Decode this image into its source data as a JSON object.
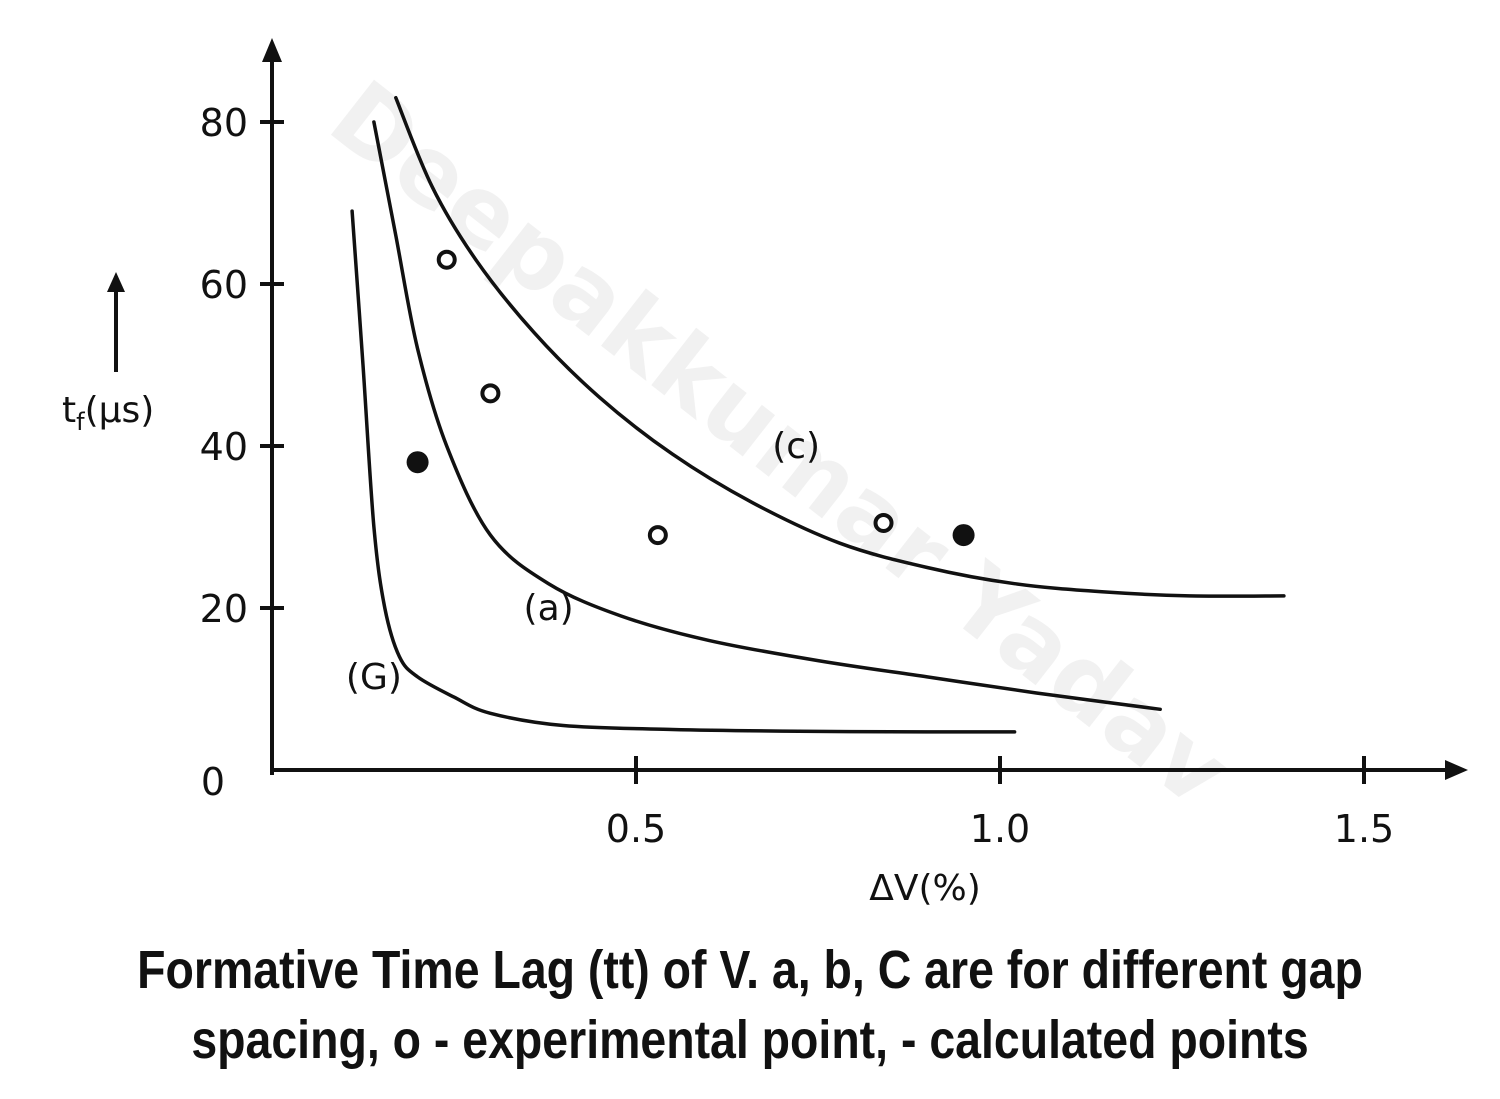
{
  "caption": {
    "line1": "Formative Time Lag (tt) of V. a, b, C are for different gap",
    "line2": "spacing, o - experimental point, - calculated points"
  },
  "watermark": "Deepakkumar Yadav",
  "chart_data": {
    "type": "line",
    "xlabel": "ΔV(%)",
    "ylabel": "t_f(μs)",
    "ylabel_main": "t",
    "ylabel_sub": "f",
    "ylabel_rest": "(μs)",
    "origin_label": "0",
    "xlim": [
      0,
      1.6
    ],
    "ylim": [
      0,
      85
    ],
    "xticks": [
      {
        "value": 0.5,
        "label": "0.5"
      },
      {
        "value": 1.0,
        "label": "1.0"
      },
      {
        "value": 1.5,
        "label": "1.5"
      }
    ],
    "yticks": [
      {
        "value": 20,
        "label": "20"
      },
      {
        "value": 40,
        "label": "40"
      },
      {
        "value": 60,
        "label": "60"
      },
      {
        "value": 80,
        "label": "80"
      }
    ],
    "grid": false,
    "series": [
      {
        "name": "(G)",
        "label_at": {
          "x": 0.14,
          "y": 10
        },
        "points": [
          [
            0.11,
            69
          ],
          [
            0.125,
            50
          ],
          [
            0.14,
            30
          ],
          [
            0.155,
            20
          ],
          [
            0.175,
            14
          ],
          [
            0.2,
            11.5
          ],
          [
            0.25,
            9
          ],
          [
            0.3,
            7
          ],
          [
            0.4,
            5.5
          ],
          [
            0.55,
            5
          ],
          [
            0.7,
            4.8
          ],
          [
            0.9,
            4.7
          ],
          [
            1.02,
            4.7
          ]
        ]
      },
      {
        "name": "(a)",
        "label_at": {
          "x": 0.38,
          "y": 18.5
        },
        "points": [
          [
            0.14,
            80
          ],
          [
            0.17,
            66
          ],
          [
            0.2,
            52
          ],
          [
            0.24,
            40
          ],
          [
            0.3,
            29
          ],
          [
            0.38,
            23
          ],
          [
            0.48,
            19
          ],
          [
            0.6,
            16
          ],
          [
            0.75,
            13.5
          ],
          [
            0.9,
            11.5
          ],
          [
            1.05,
            9.5
          ],
          [
            1.22,
            7.5
          ]
        ]
      },
      {
        "name": "(c)",
        "label_at": {
          "x": 0.72,
          "y": 38.5
        },
        "points": [
          [
            0.17,
            83
          ],
          [
            0.22,
            72
          ],
          [
            0.28,
            63
          ],
          [
            0.36,
            54
          ],
          [
            0.45,
            46
          ],
          [
            0.55,
            39
          ],
          [
            0.66,
            33
          ],
          [
            0.78,
            28
          ],
          [
            0.9,
            25
          ],
          [
            1.02,
            23
          ],
          [
            1.14,
            22
          ],
          [
            1.26,
            21.5
          ],
          [
            1.39,
            21.5
          ]
        ]
      }
    ],
    "experimental_points": [
      [
        0.24,
        63
      ],
      [
        0.3,
        46.5
      ],
      [
        0.53,
        29
      ],
      [
        0.84,
        30.5
      ]
    ],
    "calculated_points": [
      [
        0.2,
        38
      ],
      [
        0.95,
        29
      ]
    ]
  }
}
